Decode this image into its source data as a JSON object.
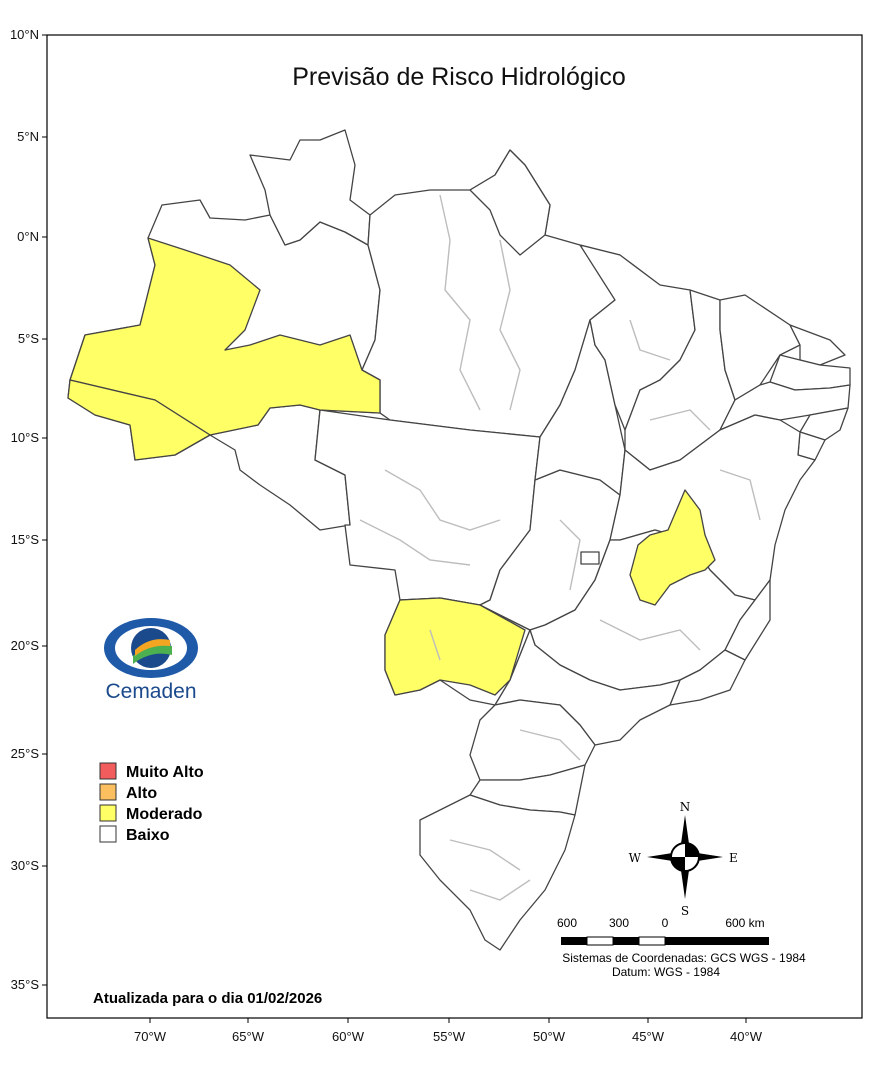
{
  "title": "Previsão de Risco Hidrológico",
  "lat_labels": [
    "10°N",
    "5°N",
    "0°N",
    "5°S",
    "10°S",
    "15°S",
    "20°S",
    "25°S",
    "30°S",
    "35°S"
  ],
  "lon_labels": [
    "70°W",
    "65°W",
    "60°W",
    "55°W",
    "50°W",
    "45°W",
    "40°W"
  ],
  "legend": [
    {
      "label": "Muito Alto",
      "color": "#f25c5c"
    },
    {
      "label": "Alto",
      "color": "#fbbf5f"
    },
    {
      "label": "Moderado",
      "color": "#ffff66"
    },
    {
      "label": "Baixo",
      "color": "#ffffff"
    }
  ],
  "logo_text": "Cemaden",
  "compass": {
    "n": "N",
    "s": "S",
    "e": "E",
    "w": "W"
  },
  "scale": {
    "labels": [
      "600",
      "300",
      "0",
      "600 km"
    ]
  },
  "crs_text": "Sistemas de Coordenadas: GCS WGS - 1984",
  "datum_text": "Datum: WGS - 1984",
  "updated_text": "Atualizada para o dia 01/02/2026",
  "risk_regions": [
    {
      "region": "western Amazonas",
      "level": "Moderado"
    },
    {
      "region": "southern Amazonas / Acre",
      "level": "Moderado"
    },
    {
      "region": "central Bahia / northern Minas Gerais",
      "level": "Moderado"
    },
    {
      "region": "western Mato Grosso do Sul",
      "level": "Moderado"
    }
  ]
}
